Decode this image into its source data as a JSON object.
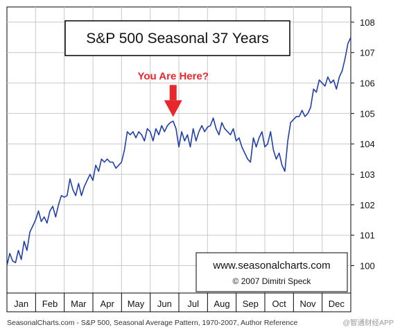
{
  "chart_data": {
    "type": "line",
    "title": "S&P 500 Seasonal 37 Years",
    "annotation": "You Are Here?",
    "annotation_month": "Jul",
    "watermark": {
      "line1": "www.seasonalcharts.com",
      "line2": "© 2007   Dimitri Speck"
    },
    "caption": "SeasonalCharts.com - S&P 500, Seasonal Average Pattern, 1970-2007, Author Reference",
    "corner_mark": "@智通财经APP",
    "xlabel": "",
    "ylabel": "",
    "ylim": [
      99.1,
      108.5
    ],
    "yticks": [
      100,
      101,
      102,
      103,
      104,
      105,
      106,
      107,
      108
    ],
    "y_axis_position": "right",
    "grid": true,
    "categories": [
      "Jan",
      "Feb",
      "Mar",
      "Apr",
      "May",
      "Jun",
      "Jul",
      "Aug",
      "Sep",
      "Oct",
      "Nov",
      "Dec"
    ],
    "series": [
      {
        "color": "#1f3fa8",
        "x": [
          0.0,
          0.1,
          0.2,
          0.3,
          0.4,
          0.5,
          0.6,
          0.7,
          0.8,
          0.9,
          1.0,
          1.1,
          1.2,
          1.3,
          1.4,
          1.5,
          1.6,
          1.7,
          1.8,
          1.9,
          2.0,
          2.1,
          2.2,
          2.3,
          2.4,
          2.5,
          2.6,
          2.7,
          2.8,
          2.9,
          3.0,
          3.1,
          3.2,
          3.3,
          3.4,
          3.5,
          3.6,
          3.7,
          3.8,
          3.9,
          4.0,
          4.1,
          4.2,
          4.3,
          4.4,
          4.5,
          4.6,
          4.7,
          4.8,
          4.9,
          5.0,
          5.1,
          5.2,
          5.3,
          5.4,
          5.5,
          5.6,
          5.7,
          5.8,
          5.9,
          6.0,
          6.1,
          6.2,
          6.3,
          6.4,
          6.5,
          6.6,
          6.7,
          6.8,
          6.9,
          7.0,
          7.1,
          7.2,
          7.3,
          7.4,
          7.5,
          7.6,
          7.7,
          7.8,
          7.9,
          8.0,
          8.1,
          8.2,
          8.3,
          8.4,
          8.5,
          8.6,
          8.7,
          8.8,
          8.9,
          9.0,
          9.1,
          9.2,
          9.3,
          9.4,
          9.5,
          9.6,
          9.7,
          9.8,
          9.9,
          10.0,
          10.1,
          10.2,
          10.3,
          10.4,
          10.5,
          10.6,
          10.7,
          10.8,
          10.9,
          11.0,
          11.1,
          11.2,
          11.3,
          11.4,
          11.5,
          11.6,
          11.7,
          11.8,
          11.9,
          12.0
        ],
        "values": [
          100.0,
          100.4,
          100.15,
          100.1,
          100.5,
          100.2,
          100.8,
          100.5,
          101.1,
          101.3,
          101.5,
          101.8,
          101.45,
          101.6,
          101.4,
          101.8,
          101.95,
          101.6,
          102.0,
          102.3,
          102.25,
          102.3,
          102.85,
          102.5,
          102.3,
          102.7,
          102.3,
          102.6,
          102.8,
          103.0,
          102.8,
          103.3,
          103.1,
          103.5,
          103.4,
          103.5,
          103.4,
          103.4,
          103.2,
          103.3,
          103.4,
          103.8,
          104.4,
          104.3,
          104.4,
          104.2,
          104.4,
          104.3,
          104.1,
          104.5,
          104.4,
          104.1,
          104.5,
          104.3,
          104.6,
          104.4,
          104.6,
          104.7,
          104.75,
          104.5,
          103.9,
          104.4,
          104.1,
          104.3,
          103.9,
          104.5,
          104.1,
          104.4,
          104.6,
          104.4,
          104.55,
          104.6,
          104.85,
          104.5,
          104.3,
          104.7,
          104.5,
          104.4,
          104.3,
          104.5,
          104.1,
          104.2,
          103.9,
          103.7,
          103.5,
          103.4,
          104.2,
          103.9,
          104.2,
          104.4,
          103.9,
          104.0,
          104.4,
          103.8,
          103.5,
          103.7,
          103.3,
          103.1,
          104.1,
          104.7,
          104.8,
          104.9,
          104.9,
          105.1,
          104.9,
          105.0,
          105.2,
          105.8,
          105.7,
          106.1,
          106.0,
          105.9,
          106.2,
          106.0,
          106.1,
          105.8,
          106.2,
          106.4,
          106.8,
          107.3,
          107.5
        ]
      }
    ]
  }
}
